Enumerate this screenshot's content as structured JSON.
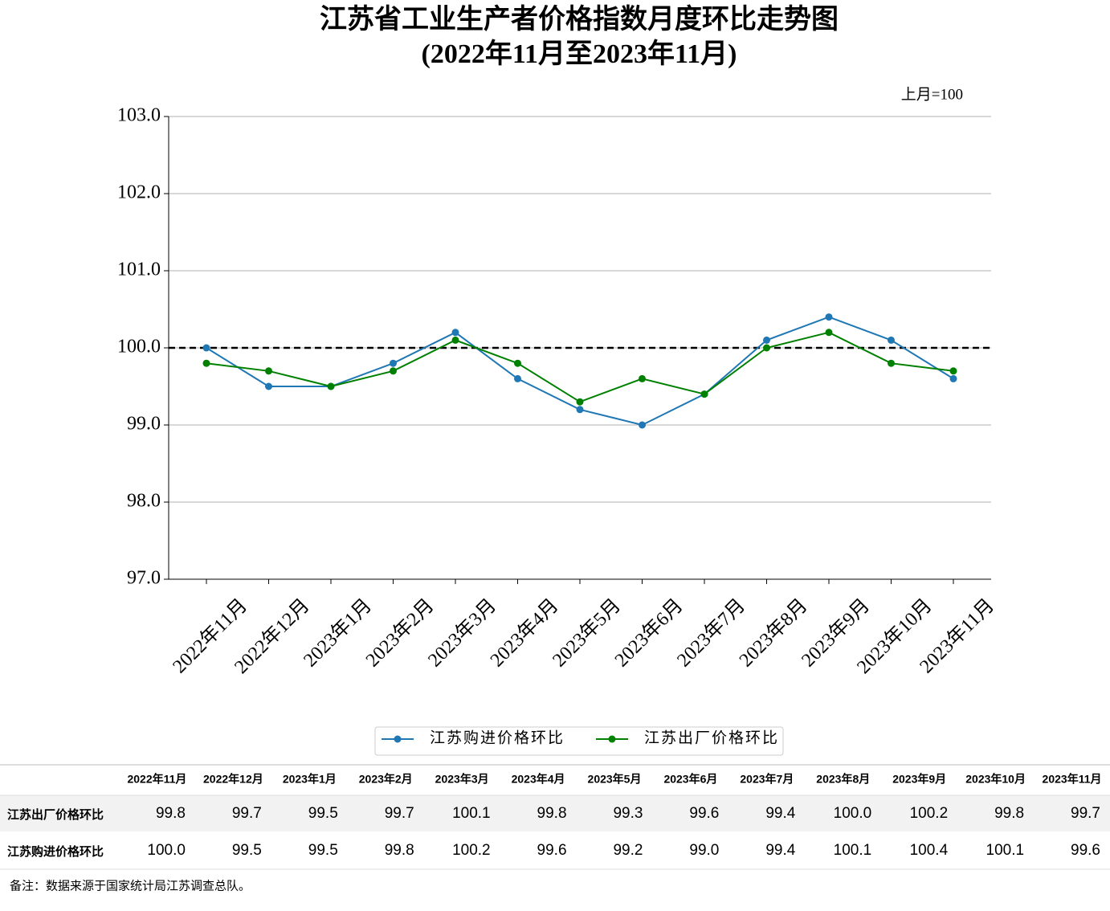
{
  "chart_data": {
    "type": "line",
    "title": "江苏省工业生产者价格指数月度环比走势图",
    "subtitle": "(2022年11月至2023年11月)",
    "unit_note": "上月=100",
    "categories": [
      "2022年11月",
      "2022年12月",
      "2023年1月",
      "2023年2月",
      "2023年3月",
      "2023年4月",
      "2023年5月",
      "2023年6月",
      "2023年7月",
      "2023年8月",
      "2023年9月",
      "2023年10月",
      "2023年11月"
    ],
    "series": [
      {
        "name": "江苏购进价格环比",
        "color": "#1f77b4",
        "values": [
          100.0,
          99.5,
          99.5,
          99.8,
          100.2,
          99.6,
          99.2,
          99.0,
          99.4,
          100.1,
          100.4,
          100.1,
          99.6
        ]
      },
      {
        "name": "江苏出厂价格环比",
        "color": "#008000",
        "values": [
          99.8,
          99.7,
          99.5,
          99.7,
          100.1,
          99.8,
          99.3,
          99.6,
          99.4,
          100.0,
          100.2,
          99.8,
          99.7
        ]
      }
    ],
    "ylim": [
      97,
      103
    ],
    "yticks": [
      {
        "value": 97,
        "label": "97.0"
      },
      {
        "value": 98,
        "label": "98.0"
      },
      {
        "value": 99,
        "label": "99.0"
      },
      {
        "value": 100,
        "label": "100.0"
      },
      {
        "value": 101,
        "label": "101.0"
      },
      {
        "value": 102,
        "label": "102.0"
      },
      {
        "value": 103,
        "label": "103.0"
      }
    ],
    "reference_line": 100,
    "grid": true,
    "legend": "bottom"
  },
  "table": {
    "columns": [
      "2022年11月",
      "2022年12月",
      "2023年1月",
      "2023年2月",
      "2023年3月",
      "2023年4月",
      "2023年5月",
      "2023年6月",
      "2023年7月",
      "2023年8月",
      "2023年9月",
      "2023年10月",
      "2023年11月"
    ],
    "rows": [
      {
        "label": "江苏出厂价格环比",
        "cells": [
          "99.8",
          "99.7",
          "99.5",
          "99.7",
          "100.1",
          "99.8",
          "99.3",
          "99.6",
          "99.4",
          "100.0",
          "100.2",
          "99.8",
          "99.7"
        ]
      },
      {
        "label": "江苏购进价格环比",
        "cells": [
          "100.0",
          "99.5",
          "99.5",
          "99.8",
          "100.2",
          "99.6",
          "99.2",
          "99.0",
          "99.4",
          "100.1",
          "100.4",
          "100.1",
          "99.6"
        ]
      }
    ]
  },
  "note": "备注：数据来源于国家统计局江苏调查总队。"
}
